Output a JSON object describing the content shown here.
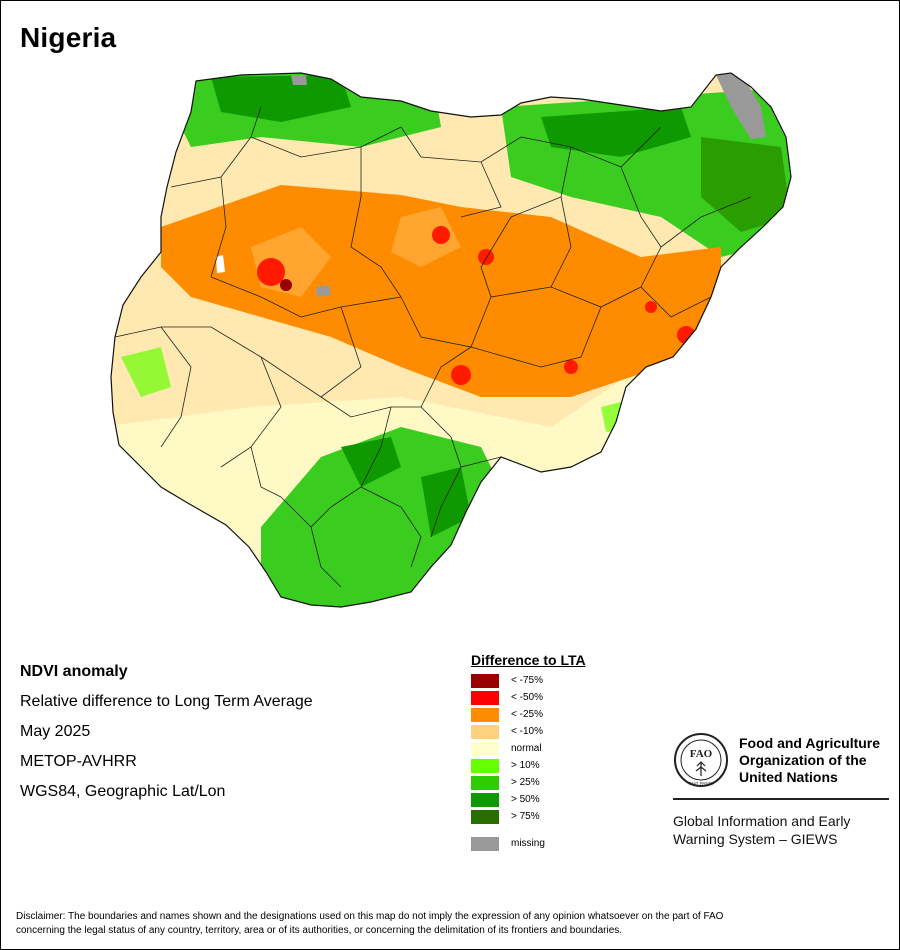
{
  "title": "Nigeria",
  "info": {
    "product": "NDVI anomaly",
    "description": "Relative difference to Long Term Average",
    "period": "May 2025",
    "sensor": "METOP-AVHRR",
    "projection": "WGS84, Geographic Lat/Lon"
  },
  "legend": {
    "title": "Difference to LTA",
    "items": [
      {
        "label": "< -75%",
        "color": "#9b0000"
      },
      {
        "label": "< -50%",
        "color": "#ff0000"
      },
      {
        "label": "< -25%",
        "color": "#ff8c00"
      },
      {
        "label": "< -10%",
        "color": "#ffd080"
      },
      {
        "label": "normal",
        "color": "#ffffcc"
      },
      {
        "label": "> 10%",
        "color": "#66ff00"
      },
      {
        "label": "> 25%",
        "color": "#2ecc00"
      },
      {
        "label": "> 50%",
        "color": "#0f9900"
      },
      {
        "label": "> 75%",
        "color": "#2a6e00"
      }
    ],
    "missing": {
      "label": "missing",
      "color": "#999999"
    }
  },
  "org": {
    "name_line1": "Food and Agriculture",
    "name_line2": "Organization of the",
    "name_line3": "United Nations",
    "system_line1": "Global Information and Early",
    "system_line2": "Warning System – GIEWS",
    "logo_text": "FAO",
    "logo_motto": "FIAT PANIS"
  },
  "disclaimer_line1": "Disclaimer: The boundaries and names shown and the designations used on this map do not imply the expression of any opinion whatsoever on the part of FAO",
  "disclaimer_line2": "concerning the legal status of any country, territory, area or of its authorities, or concerning the delimitation of its frontiers and boundaries."
}
